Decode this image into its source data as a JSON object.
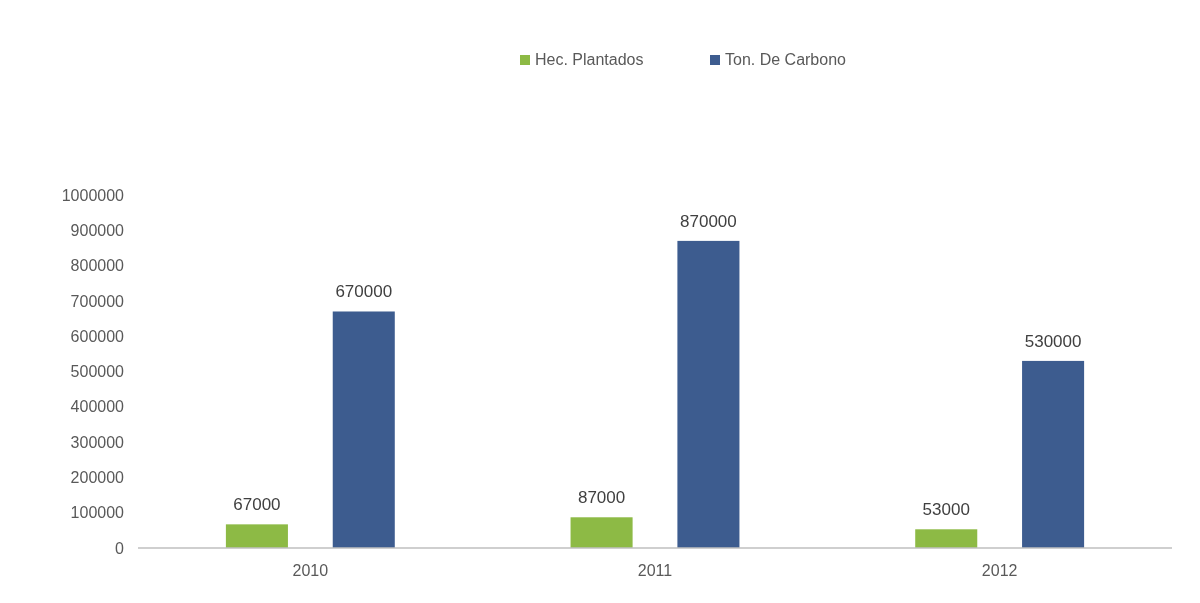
{
  "chart_data": {
    "type": "bar",
    "categories": [
      "2010",
      "2011",
      "2012"
    ],
    "series": [
      {
        "name": "Hec. Plantados",
        "color": "#8dba45",
        "values": [
          67000,
          87000,
          53000
        ]
      },
      {
        "name": "Ton. De Carbono",
        "color": "#3d5c8f",
        "values": [
          670000,
          870000,
          530000
        ]
      }
    ],
    "ylim": [
      0,
      1000000
    ],
    "yticks": [
      0,
      100000,
      200000,
      300000,
      400000,
      500000,
      600000,
      700000,
      800000,
      900000,
      1000000
    ],
    "data_labels": true,
    "legend": "top",
    "grid": false
  }
}
